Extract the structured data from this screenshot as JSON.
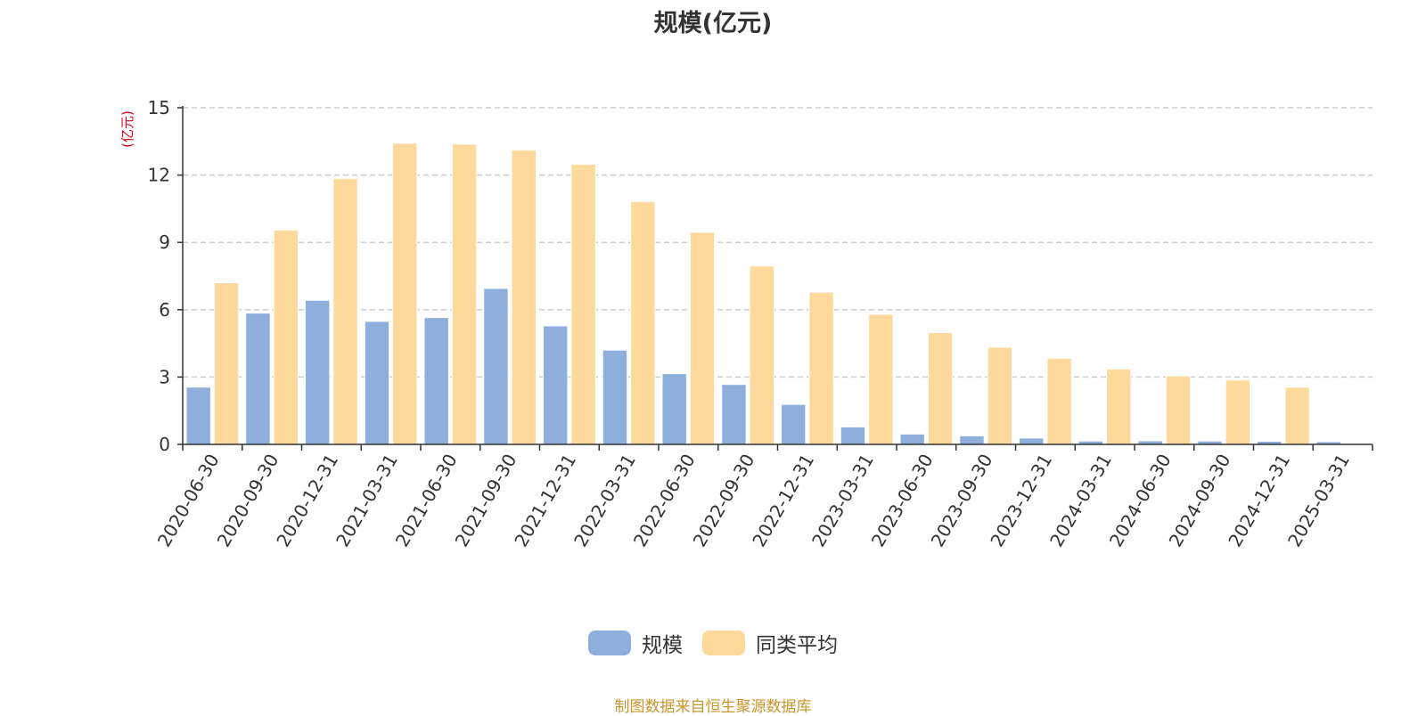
{
  "title": "规模(亿元)",
  "source_note": "制图数据来自恒生聚源数据库",
  "colors": {
    "series_0": "#8eaedb",
    "series_1": "#fdd99b",
    "unit": "#e60012",
    "source": "#c8962a"
  },
  "chart_data": {
    "type": "bar",
    "title": "规模(亿元)",
    "xlabel": "",
    "ylabel": "(亿元)",
    "ylim": [
      0,
      15
    ],
    "yticks": [
      0,
      3,
      6,
      9,
      12,
      15
    ],
    "grid": true,
    "legend_position": "bottom",
    "categories": [
      "2020-06-30",
      "2020-09-30",
      "2020-12-31",
      "2021-03-31",
      "2021-06-30",
      "2021-09-30",
      "2021-12-31",
      "2022-03-31",
      "2022-06-30",
      "2022-09-30",
      "2022-12-31",
      "2023-03-31",
      "2023-06-30",
      "2023-09-30",
      "2023-12-31",
      "2024-03-31",
      "2024-06-30",
      "2024-09-30",
      "2024-12-31",
      "2025-03-31"
    ],
    "series": [
      {
        "name": "规模",
        "values": [
          2.55,
          5.85,
          6.42,
          5.48,
          5.65,
          6.95,
          5.28,
          4.2,
          3.15,
          2.67,
          1.78,
          0.78,
          0.46,
          0.38,
          0.28,
          0.15,
          0.16,
          0.15,
          0.14,
          0.12
        ]
      },
      {
        "name": "同类平均",
        "values": [
          7.2,
          9.55,
          11.85,
          13.42,
          13.38,
          13.12,
          12.48,
          10.82,
          9.45,
          7.95,
          6.78,
          5.8,
          4.98,
          4.33,
          3.83,
          3.36,
          3.05,
          2.87,
          2.55,
          null
        ]
      }
    ]
  }
}
